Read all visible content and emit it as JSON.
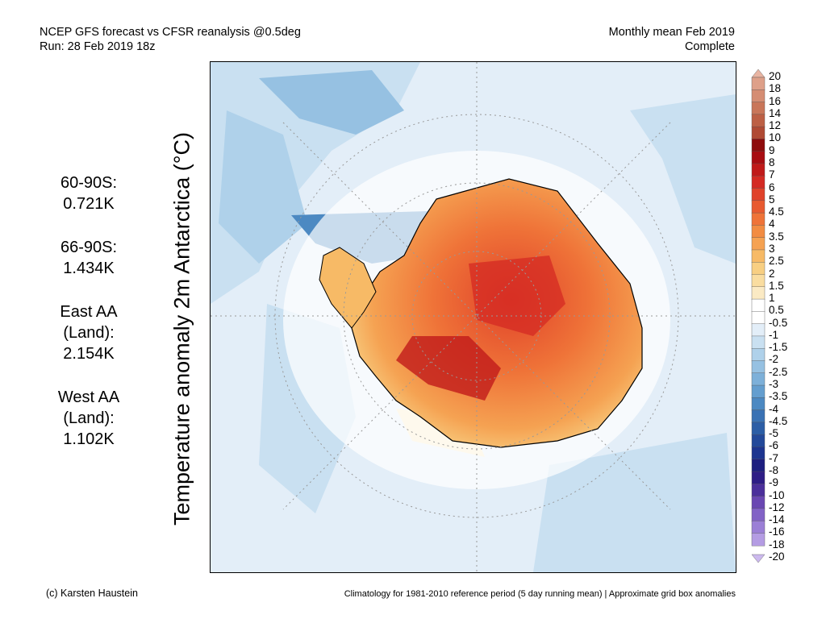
{
  "header": {
    "left_line1": "NCEP GFS forecast vs CFSR reanalysis @0.5deg",
    "left_line2": "Run: 28 Feb 2019 18z",
    "right_line1": "Monthly mean Feb 2019",
    "right_line2": "Complete"
  },
  "y_label": "Temperature anomaly 2m Antarctica (°C)",
  "stats": [
    {
      "line1": "60-90S:",
      "line2": "",
      "value": "0.721K"
    },
    {
      "line1": "66-90S:",
      "line2": "",
      "value": "1.434K"
    },
    {
      "line1": "East AA",
      "line2": "(Land):",
      "value": "2.154K"
    },
    {
      "line1": "West AA",
      "line2": "(Land):",
      "value": "1.102K"
    }
  ],
  "colorbar": {
    "labels": [
      "20",
      "18",
      "16",
      "14",
      "12",
      "10",
      "9",
      "8",
      "7",
      "6",
      "5",
      "4.5",
      "4",
      "3.5",
      "3",
      "2.5",
      "2",
      "1.5",
      "1",
      "0.5",
      "-0.5",
      "-1",
      "-1.5",
      "-2",
      "-2.5",
      "-3",
      "-3.5",
      "-4",
      "-4.5",
      "-5",
      "-6",
      "-7",
      "-8",
      "-9",
      "-10",
      "-12",
      "-14",
      "-16",
      "-18",
      "-20"
    ],
    "colors": [
      "#e8b4a2",
      "#dea089",
      "#d58d73",
      "#c97659",
      "#bd6045",
      "#b04a34",
      "#8e0b0b",
      "#a80d12",
      "#c01a1a",
      "#d42a23",
      "#e0422a",
      "#e85a30",
      "#ef7338",
      "#f28c42",
      "#f5a252",
      "#f7ba66",
      "#f8cf82",
      "#faddA0",
      "#fbeac4",
      "#ffffff",
      "#ffffff",
      "#e3eef8",
      "#c9e0f1",
      "#afd1ea",
      "#96c1e2",
      "#7db0d9",
      "#649ecf",
      "#4c89c2",
      "#3a72b4",
      "#2c5ea6",
      "#23499a",
      "#1d3590",
      "#1d1e80",
      "#2e1d86",
      "#4b2f9b",
      "#6a47b2",
      "#8262c6",
      "#9b7fd6",
      "#b49ce3",
      "#ccb9ee"
    ]
  },
  "footer": {
    "left": "(c) Karsten Haustein",
    "right": "Climatology for 1981-2010 reference period (5 day running mean) | Approximate grid box anomalies"
  }
}
